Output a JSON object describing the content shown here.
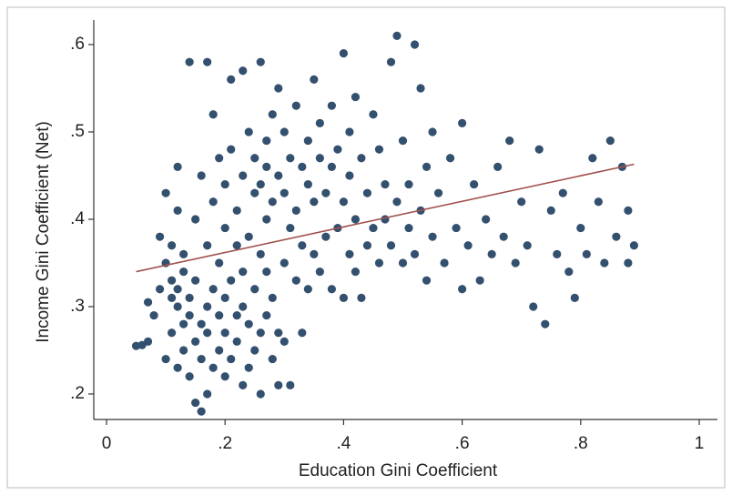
{
  "chart_data": {
    "type": "scatter",
    "x_label": "Education Gini Coefficient",
    "y_label": "Income Gini Coefficient (Net)",
    "xlim": [
      -0.0215,
      1.0307
    ],
    "ylim": [
      0.1708,
      0.6281
    ],
    "xticks": [
      0,
      {
        "value": 0.2,
        "label": ".2"
      },
      {
        "value": 0.4,
        "label": ".4"
      },
      {
        "value": 0.6,
        "label": ".6"
      },
      {
        "value": 0.8,
        "label": ".8"
      },
      1
    ],
    "yticks": [
      {
        "value": 0.2,
        "label": ".2"
      },
      {
        "value": 0.3,
        "label": ".3"
      },
      {
        "value": 0.4,
        "label": ".4"
      },
      {
        "value": 0.5,
        "label": ".5"
      },
      {
        "value": 0.6,
        "label": ".6"
      }
    ],
    "grid": false,
    "series": [
      {
        "color": "#34506f",
        "x": [
          0.05,
          0.06,
          0.07,
          0.07,
          0.08,
          0.09,
          0.09,
          0.1,
          0.1,
          0.1,
          0.11,
          0.11,
          0.11,
          0.11,
          0.12,
          0.12,
          0.12,
          0.12,
          0.12,
          0.13,
          0.13,
          0.13,
          0.13,
          0.14,
          0.14,
          0.14,
          0.14,
          0.15,
          0.15,
          0.15,
          0.15,
          0.16,
          0.16,
          0.16,
          0.16,
          0.17,
          0.17,
          0.17,
          0.17,
          0.17,
          0.18,
          0.18,
          0.18,
          0.18,
          0.19,
          0.19,
          0.19,
          0.19,
          0.2,
          0.2,
          0.2,
          0.2,
          0.2,
          0.21,
          0.21,
          0.21,
          0.21,
          0.22,
          0.22,
          0.22,
          0.22,
          0.23,
          0.23,
          0.23,
          0.23,
          0.23,
          0.24,
          0.24,
          0.24,
          0.24,
          0.25,
          0.25,
          0.25,
          0.25,
          0.26,
          0.26,
          0.26,
          0.26,
          0.26,
          0.27,
          0.27,
          0.27,
          0.27,
          0.27,
          0.28,
          0.28,
          0.28,
          0.28,
          0.29,
          0.29,
          0.29,
          0.29,
          0.3,
          0.3,
          0.3,
          0.3,
          0.31,
          0.31,
          0.31,
          0.32,
          0.32,
          0.32,
          0.33,
          0.33,
          0.33,
          0.34,
          0.34,
          0.34,
          0.35,
          0.35,
          0.35,
          0.36,
          0.36,
          0.36,
          0.37,
          0.37,
          0.38,
          0.38,
          0.38,
          0.39,
          0.39,
          0.4,
          0.4,
          0.4,
          0.41,
          0.41,
          0.41,
          0.42,
          0.42,
          0.42,
          0.43,
          0.43,
          0.44,
          0.44,
          0.45,
          0.45,
          0.46,
          0.46,
          0.47,
          0.47,
          0.48,
          0.48,
          0.49,
          0.49,
          0.5,
          0.5,
          0.51,
          0.51,
          0.52,
          0.52,
          0.53,
          0.53,
          0.54,
          0.54,
          0.55,
          0.55,
          0.56,
          0.57,
          0.58,
          0.59,
          0.6,
          0.6,
          0.61,
          0.62,
          0.63,
          0.64,
          0.65,
          0.66,
          0.67,
          0.68,
          0.69,
          0.7,
          0.71,
          0.72,
          0.73,
          0.74,
          0.75,
          0.76,
          0.77,
          0.78,
          0.79,
          0.8,
          0.81,
          0.82,
          0.83,
          0.84,
          0.85,
          0.86,
          0.87,
          0.88,
          0.89,
          0.88
        ],
        "values": [
          0.255,
          0.256,
          0.26,
          0.305,
          0.29,
          0.32,
          0.38,
          0.24,
          0.35,
          0.43,
          0.27,
          0.31,
          0.33,
          0.37,
          0.23,
          0.3,
          0.32,
          0.41,
          0.46,
          0.25,
          0.28,
          0.34,
          0.36,
          0.22,
          0.29,
          0.31,
          0.58,
          0.19,
          0.26,
          0.33,
          0.4,
          0.18,
          0.24,
          0.28,
          0.45,
          0.2,
          0.27,
          0.3,
          0.58,
          0.37,
          0.23,
          0.32,
          0.42,
          0.52,
          0.25,
          0.29,
          0.35,
          0.47,
          0.22,
          0.27,
          0.31,
          0.39,
          0.44,
          0.24,
          0.33,
          0.48,
          0.56,
          0.26,
          0.29,
          0.37,
          0.41,
          0.21,
          0.3,
          0.34,
          0.45,
          0.57,
          0.23,
          0.28,
          0.38,
          0.5,
          0.25,
          0.32,
          0.43,
          0.47,
          0.2,
          0.27,
          0.36,
          0.44,
          0.58,
          0.29,
          0.34,
          0.4,
          0.46,
          0.49,
          0.24,
          0.31,
          0.42,
          0.52,
          0.21,
          0.27,
          0.45,
          0.55,
          0.26,
          0.35,
          0.43,
          0.5,
          0.21,
          0.39,
          0.47,
          0.33,
          0.41,
          0.53,
          0.27,
          0.37,
          0.46,
          0.32,
          0.44,
          0.49,
          0.36,
          0.42,
          0.56,
          0.34,
          0.47,
          0.51,
          0.38,
          0.43,
          0.32,
          0.46,
          0.53,
          0.39,
          0.48,
          0.31,
          0.42,
          0.59,
          0.36,
          0.45,
          0.5,
          0.34,
          0.4,
          0.54,
          0.31,
          0.47,
          0.37,
          0.43,
          0.39,
          0.52,
          0.35,
          0.48,
          0.4,
          0.44,
          0.37,
          0.58,
          0.61,
          0.42,
          0.35,
          0.49,
          0.39,
          0.44,
          0.36,
          0.6,
          0.41,
          0.55,
          0.33,
          0.46,
          0.38,
          0.5,
          0.43,
          0.35,
          0.47,
          0.39,
          0.32,
          0.51,
          0.37,
          0.44,
          0.33,
          0.4,
          0.36,
          0.46,
          0.38,
          0.49,
          0.35,
          0.42,
          0.37,
          0.3,
          0.48,
          0.28,
          0.41,
          0.36,
          0.43,
          0.34,
          0.31,
          0.39,
          0.36,
          0.47,
          0.42,
          0.35,
          0.49,
          0.38,
          0.46,
          0.41,
          0.37,
          0.35
        ]
      }
    ],
    "fit_line": {
      "color": "#a0524f",
      "x": [
        0.05,
        0.89
      ],
      "values": [
        0.34,
        0.463
      ]
    }
  }
}
